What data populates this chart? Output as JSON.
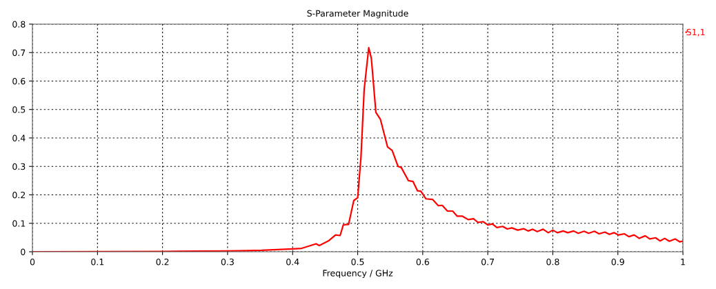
{
  "chart_data": {
    "type": "line",
    "title": "S-Parameter Magnitude",
    "xlabel": "Frequency / GHz",
    "xlim": [
      0,
      1
    ],
    "ylim": [
      0,
      0.8
    ],
    "xticks": [
      0,
      0.1,
      0.2,
      0.3,
      0.4,
      0.5,
      0.6,
      0.7,
      0.8,
      0.9,
      1
    ],
    "yticks": [
      0,
      0.1,
      0.2,
      0.3,
      0.4,
      0.5,
      0.6,
      0.7,
      0.8
    ],
    "grid": true,
    "legend": "top right",
    "line_style": "solid",
    "marker": "none",
    "series": [
      {
        "name": "S1,1",
        "color": "#ff0000",
        "x": [
          0,
          0.2,
          0.25,
          0.3,
          0.33,
          0.352,
          0.4,
          0.414,
          0.436,
          0.441,
          0.455,
          0.466,
          0.473,
          0.478,
          0.486,
          0.494,
          0.5,
          0.505,
          0.51,
          0.517,
          0.521,
          0.528,
          0.535,
          0.546,
          0.553,
          0.562,
          0.567,
          0.578,
          0.585,
          0.592,
          0.597,
          0.605,
          0.615,
          0.624,
          0.63,
          0.638,
          0.646,
          0.653,
          0.661,
          0.67,
          0.678,
          0.685,
          0.693,
          0.7,
          0.707,
          0.714,
          0.723,
          0.73,
          0.737,
          0.746,
          0.755,
          0.762,
          0.769,
          0.776,
          0.785,
          0.793,
          0.8,
          0.807,
          0.816,
          0.823,
          0.832,
          0.839,
          0.848,
          0.855,
          0.864,
          0.871,
          0.88,
          0.887,
          0.894,
          0.901,
          0.91,
          0.917,
          0.925,
          0.933,
          0.942,
          0.949,
          0.958,
          0.965,
          0.972,
          0.979,
          0.988,
          0.995,
          1.0
        ],
        "values": [
          0,
          0.001,
          0.002,
          0.003,
          0.004,
          0.005,
          0.01,
          0.012,
          0.028,
          0.022,
          0.038,
          0.059,
          0.057,
          0.095,
          0.096,
          0.18,
          0.19,
          0.33,
          0.57,
          0.717,
          0.68,
          0.49,
          0.465,
          0.368,
          0.356,
          0.3,
          0.296,
          0.25,
          0.247,
          0.214,
          0.213,
          0.186,
          0.184,
          0.162,
          0.163,
          0.143,
          0.143,
          0.125,
          0.125,
          0.113,
          0.116,
          0.103,
          0.106,
          0.094,
          0.098,
          0.085,
          0.089,
          0.08,
          0.084,
          0.076,
          0.081,
          0.073,
          0.079,
          0.071,
          0.079,
          0.067,
          0.076,
          0.067,
          0.073,
          0.067,
          0.073,
          0.065,
          0.072,
          0.065,
          0.072,
          0.063,
          0.069,
          0.061,
          0.067,
          0.059,
          0.063,
          0.053,
          0.059,
          0.047,
          0.056,
          0.045,
          0.049,
          0.038,
          0.047,
          0.037,
          0.045,
          0.035,
          0.037
        ]
      }
    ]
  }
}
